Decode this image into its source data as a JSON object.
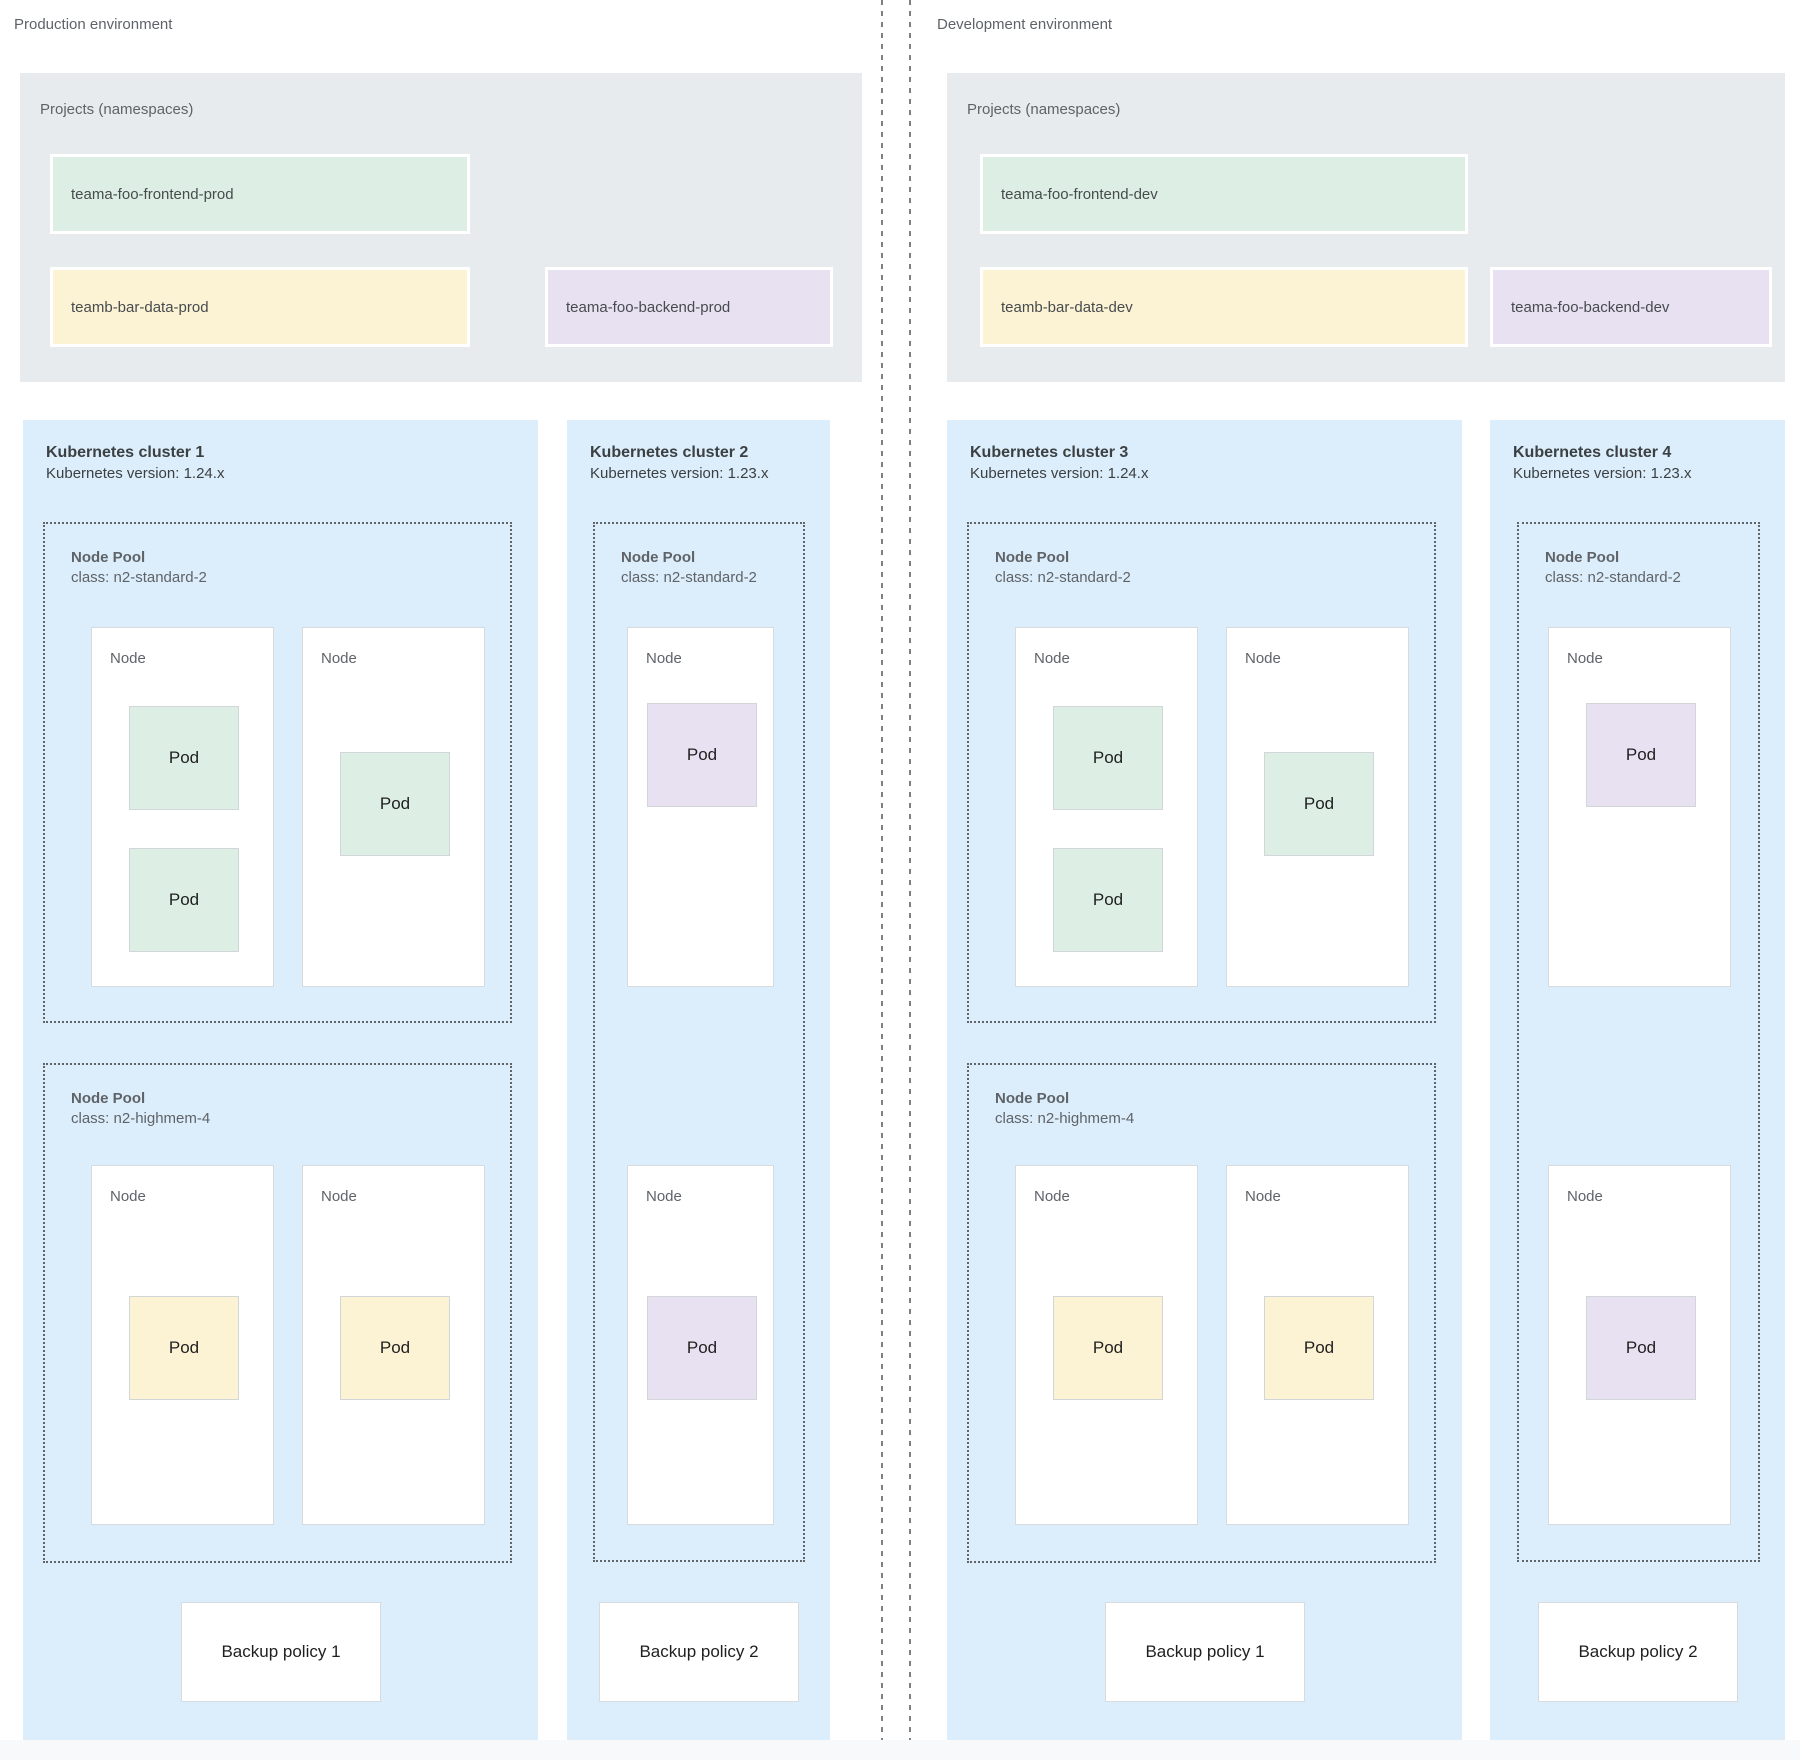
{
  "colors": {
    "green": "#ddefe4",
    "yellow": "#fcf3d4",
    "purple": "#e8e1f2",
    "cluster_blue": "#dceefb",
    "projects_gray": "#e8ebee"
  },
  "environments": [
    {
      "id": "production",
      "label": "Production environment",
      "projects": {
        "title": "Projects (namespaces)",
        "items": [
          {
            "name": "teama-foo-frontend-prod",
            "color": "green"
          },
          {
            "name": "teamb-bar-data-prod",
            "color": "yellow"
          },
          {
            "name": "teama-foo-backend-prod",
            "color": "purple"
          }
        ]
      },
      "clusters": [
        {
          "title": "Kubernetes cluster 1",
          "version": "Kubernetes version: 1.24.x",
          "layout": "wide",
          "node_pools": [
            {
              "title": "Node Pool",
              "class": "class: n2-standard-2",
              "nodes": [
                {
                  "label": "Node",
                  "pods": [
                    {
                      "label": "Pod",
                      "color": "green"
                    },
                    {
                      "label": "Pod",
                      "color": "green"
                    }
                  ]
                },
                {
                  "label": "Node",
                  "pods": [
                    {
                      "label": "Pod",
                      "color": "green"
                    }
                  ]
                }
              ]
            },
            {
              "title": "Node Pool",
              "class": "class: n2-highmem-4",
              "nodes": [
                {
                  "label": "Node",
                  "pods": [
                    {
                      "label": "Pod",
                      "color": "yellow"
                    }
                  ]
                },
                {
                  "label": "Node",
                  "pods": [
                    {
                      "label": "Pod",
                      "color": "yellow"
                    }
                  ]
                }
              ]
            }
          ],
          "backup_policy": "Backup policy 1"
        },
        {
          "title": "Kubernetes cluster 2",
          "version": "Kubernetes version: 1.23.x",
          "layout": "narrow",
          "node_pools": [
            {
              "title": "Node Pool",
              "class": "class: n2-standard-2",
              "nodes": [
                {
                  "label": "Node",
                  "pods": [
                    {
                      "label": "Pod",
                      "color": "purple"
                    }
                  ]
                },
                {
                  "label": "Node",
                  "pods": [
                    {
                      "label": "Pod",
                      "color": "purple"
                    }
                  ]
                }
              ]
            }
          ],
          "backup_policy": "Backup policy 2"
        }
      ]
    },
    {
      "id": "development",
      "label": "Development environment",
      "projects": {
        "title": "Projects (namespaces)",
        "items": [
          {
            "name": "teama-foo-frontend-dev",
            "color": "green"
          },
          {
            "name": "teamb-bar-data-dev",
            "color": "yellow"
          },
          {
            "name": "teama-foo-backend-dev",
            "color": "purple"
          }
        ]
      },
      "clusters": [
        {
          "title": "Kubernetes cluster 3",
          "version": "Kubernetes version: 1.24.x",
          "layout": "wide",
          "node_pools": [
            {
              "title": "Node Pool",
              "class": "class: n2-standard-2",
              "nodes": [
                {
                  "label": "Node",
                  "pods": [
                    {
                      "label": "Pod",
                      "color": "green"
                    },
                    {
                      "label": "Pod",
                      "color": "green"
                    }
                  ]
                },
                {
                  "label": "Node",
                  "pods": [
                    {
                      "label": "Pod",
                      "color": "green"
                    }
                  ]
                }
              ]
            },
            {
              "title": "Node Pool",
              "class": "class: n2-highmem-4",
              "nodes": [
                {
                  "label": "Node",
                  "pods": [
                    {
                      "label": "Pod",
                      "color": "yellow"
                    }
                  ]
                },
                {
                  "label": "Node",
                  "pods": [
                    {
                      "label": "Pod",
                      "color": "yellow"
                    }
                  ]
                }
              ]
            }
          ],
          "backup_policy": "Backup policy 1"
        },
        {
          "title": "Kubernetes cluster 4",
          "version": "Kubernetes version: 1.23.x",
          "layout": "narrow",
          "node_pools": [
            {
              "title": "Node Pool",
              "class": "class: n2-standard-2",
              "nodes": [
                {
                  "label": "Node",
                  "pods": [
                    {
                      "label": "Pod",
                      "color": "purple"
                    }
                  ]
                },
                {
                  "label": "Node",
                  "pods": [
                    {
                      "label": "Pod",
                      "color": "purple"
                    }
                  ]
                }
              ]
            }
          ],
          "backup_policy": "Backup policy 2"
        }
      ]
    }
  ]
}
